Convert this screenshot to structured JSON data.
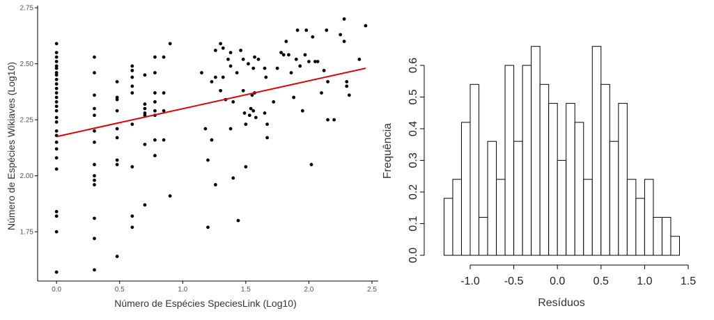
{
  "colors": {
    "points": "#000000",
    "fit_line": "#e00000",
    "axis": "#000000",
    "bar_fill": "#ffffff",
    "bar_stroke": "#000000"
  },
  "chart_data": [
    {
      "type": "scatter",
      "title": "",
      "xlabel": "Número de Espécies SpeciesLink (Log10)",
      "ylabel": "Número de Espécies Wikiaves (Log10)",
      "xlim": [
        -0.15,
        2.55
      ],
      "ylim": [
        1.53,
        2.76
      ],
      "xticks": [
        0.0,
        0.5,
        1.0,
        1.5,
        2.0,
        2.5
      ],
      "xtick_labels": [
        "0.0",
        "0.5",
        "1.0",
        "1.5",
        "2.0",
        "2.5"
      ],
      "yticks": [
        1.75,
        2.0,
        2.25,
        2.5,
        2.75
      ],
      "ytick_labels": [
        "1.75",
        "2.00",
        "2.25",
        "2.50",
        "2.75"
      ],
      "grid": false,
      "fit_line": {
        "x": [
          0.0,
          2.45
        ],
        "y": [
          2.175,
          2.48
        ]
      },
      "points": [
        [
          0.0,
          2.59
        ],
        [
          0.0,
          2.55
        ],
        [
          0.0,
          2.53
        ],
        [
          0.0,
          2.51
        ],
        [
          0.0,
          2.49
        ],
        [
          0.0,
          2.48
        ],
        [
          0.0,
          2.46
        ],
        [
          0.0,
          2.45
        ],
        [
          0.0,
          2.43
        ],
        [
          0.0,
          2.41
        ],
        [
          0.0,
          2.39
        ],
        [
          0.0,
          2.37
        ],
        [
          0.0,
          2.35
        ],
        [
          0.0,
          2.33
        ],
        [
          0.0,
          2.31
        ],
        [
          0.0,
          2.29
        ],
        [
          0.0,
          2.26
        ],
        [
          0.0,
          2.24
        ],
        [
          0.0,
          2.2
        ],
        [
          0.0,
          2.18
        ],
        [
          0.0,
          2.15
        ],
        [
          0.0,
          2.12
        ],
        [
          0.0,
          2.08
        ],
        [
          0.0,
          2.03
        ],
        [
          0.0,
          1.84
        ],
        [
          0.0,
          1.82
        ],
        [
          0.0,
          1.75
        ],
        [
          0.0,
          1.57
        ],
        [
          0.3,
          2.53
        ],
        [
          0.3,
          2.46
        ],
        [
          0.3,
          2.36
        ],
        [
          0.3,
          2.3
        ],
        [
          0.3,
          2.27
        ],
        [
          0.3,
          2.2
        ],
        [
          0.3,
          2.15
        ],
        [
          0.3,
          2.05
        ],
        [
          0.3,
          2.0
        ],
        [
          0.3,
          1.98
        ],
        [
          0.3,
          1.96
        ],
        [
          0.3,
          1.81
        ],
        [
          0.3,
          1.72
        ],
        [
          0.3,
          1.58
        ],
        [
          0.48,
          2.42
        ],
        [
          0.48,
          2.35
        ],
        [
          0.48,
          2.34
        ],
        [
          0.48,
          2.29
        ],
        [
          0.48,
          2.21
        ],
        [
          0.48,
          2.17
        ],
        [
          0.48,
          2.07
        ],
        [
          0.48,
          2.05
        ],
        [
          0.48,
          1.64
        ],
        [
          0.6,
          2.49
        ],
        [
          0.6,
          2.47
        ],
        [
          0.6,
          2.44
        ],
        [
          0.6,
          2.4
        ],
        [
          0.6,
          2.37
        ],
        [
          0.6,
          2.23
        ],
        [
          0.6,
          2.04
        ],
        [
          0.6,
          1.82
        ],
        [
          0.6,
          1.77
        ],
        [
          0.7,
          2.45
        ],
        [
          0.7,
          2.32
        ],
        [
          0.7,
          2.3
        ],
        [
          0.7,
          2.28
        ],
        [
          0.7,
          2.27
        ],
        [
          0.7,
          2.14
        ],
        [
          0.7,
          1.87
        ],
        [
          0.78,
          2.53
        ],
        [
          0.78,
          2.46
        ],
        [
          0.78,
          2.37
        ],
        [
          0.78,
          2.33
        ],
        [
          0.78,
          2.29
        ],
        [
          0.78,
          2.27
        ],
        [
          0.78,
          2.16
        ],
        [
          0.78,
          2.09
        ],
        [
          0.85,
          2.53
        ],
        [
          0.85,
          2.37
        ],
        [
          0.85,
          2.29
        ],
        [
          0.85,
          2.16
        ],
        [
          0.9,
          2.59
        ],
        [
          0.9,
          1.91
        ],
        [
          1.15,
          2.46
        ],
        [
          1.18,
          2.21
        ],
        [
          1.2,
          2.07
        ],
        [
          1.2,
          1.77
        ],
        [
          1.23,
          2.42
        ],
        [
          1.23,
          2.16
        ],
        [
          1.26,
          2.56
        ],
        [
          1.26,
          2.44
        ],
        [
          1.26,
          1.96
        ],
        [
          1.3,
          2.59
        ],
        [
          1.3,
          2.38
        ],
        [
          1.32,
          2.57
        ],
        [
          1.32,
          2.44
        ],
        [
          1.34,
          2.34
        ],
        [
          1.36,
          2.52
        ],
        [
          1.38,
          2.55
        ],
        [
          1.38,
          2.49
        ],
        [
          1.38,
          2.21
        ],
        [
          1.4,
          2.33
        ],
        [
          1.4,
          1.99
        ],
        [
          1.43,
          2.46
        ],
        [
          1.44,
          1.8
        ],
        [
          1.46,
          2.56
        ],
        [
          1.48,
          2.52
        ],
        [
          1.48,
          2.38
        ],
        [
          1.49,
          2.28
        ],
        [
          1.5,
          2.23
        ],
        [
          1.5,
          2.04
        ],
        [
          1.52,
          2.5
        ],
        [
          1.53,
          2.27
        ],
        [
          1.54,
          2.3
        ],
        [
          1.55,
          2.36
        ],
        [
          1.56,
          2.48
        ],
        [
          1.56,
          2.29
        ],
        [
          1.57,
          2.53
        ],
        [
          1.57,
          2.37
        ],
        [
          1.58,
          2.26
        ],
        [
          1.6,
          2.52
        ],
        [
          1.65,
          2.48
        ],
        [
          1.65,
          2.28
        ],
        [
          1.66,
          2.44
        ],
        [
          1.67,
          2.23
        ],
        [
          1.67,
          2.17
        ],
        [
          1.72,
          2.33
        ],
        [
          1.75,
          2.48
        ],
        [
          1.78,
          2.55
        ],
        [
          1.8,
          2.54
        ],
        [
          1.82,
          2.6
        ],
        [
          1.84,
          2.54
        ],
        [
          1.86,
          2.46
        ],
        [
          1.88,
          2.35
        ],
        [
          1.9,
          2.52
        ],
        [
          1.91,
          2.65
        ],
        [
          1.93,
          2.49
        ],
        [
          1.95,
          2.29
        ],
        [
          1.97,
          2.54
        ],
        [
          1.98,
          2.65
        ],
        [
          2.0,
          2.51
        ],
        [
          2.02,
          2.05
        ],
        [
          2.03,
          2.62
        ],
        [
          2.05,
          2.51
        ],
        [
          2.07,
          2.51
        ],
        [
          2.1,
          2.37
        ],
        [
          2.12,
          2.47
        ],
        [
          2.14,
          2.65
        ],
        [
          2.15,
          2.42
        ],
        [
          2.15,
          2.25
        ],
        [
          2.2,
          2.25
        ],
        [
          2.25,
          2.63
        ],
        [
          2.28,
          2.7
        ],
        [
          2.28,
          2.6
        ],
        [
          2.3,
          2.4
        ],
        [
          2.3,
          2.42
        ],
        [
          2.32,
          2.36
        ],
        [
          2.4,
          2.52
        ],
        [
          2.45,
          2.67
        ]
      ]
    },
    {
      "type": "bar",
      "title": "",
      "xlabel": "Resíduos",
      "ylabel": "Frequência",
      "xlim": [
        -1.35,
        1.5
      ],
      "ylim": [
        0.0,
        0.66
      ],
      "bin_width": 0.1,
      "bin_start": -1.3,
      "xticks": [
        -1.0,
        -0.5,
        0.0,
        0.5,
        1.0,
        1.5
      ],
      "xtick_labels": [
        "-1.0",
        "-0.5",
        "0.0",
        "0.5",
        "1.0",
        "1.5"
      ],
      "yticks": [
        0.0,
        0.1,
        0.2,
        0.3,
        0.4,
        0.5,
        0.6
      ],
      "ytick_labels": [
        "0.0",
        "0.1",
        "0.2",
        "0.3",
        "0.4",
        "0.5",
        "0.6"
      ],
      "values": [
        0.18,
        0.24,
        0.42,
        0.54,
        0.12,
        0.36,
        0.24,
        0.6,
        0.36,
        0.6,
        0.66,
        0.54,
        0.48,
        0.3,
        0.48,
        0.42,
        0.24,
        0.66,
        0.54,
        0.36,
        0.48,
        0.24,
        0.18,
        0.24,
        0.12,
        0.12,
        0.06
      ]
    }
  ]
}
